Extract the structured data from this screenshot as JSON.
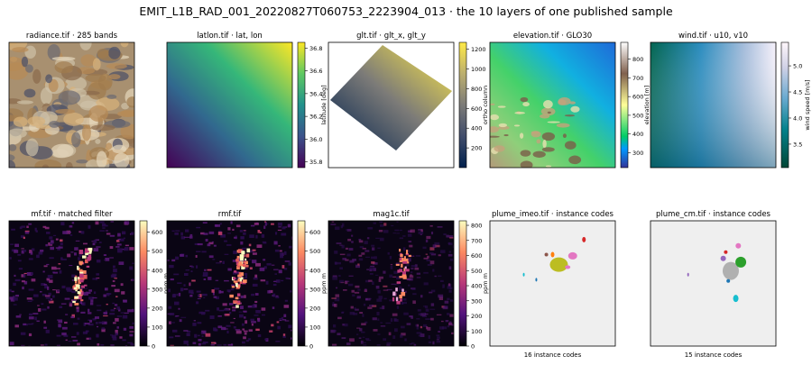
{
  "figure": {
    "suptitle": "EMIT_L1B_RAD_001_20220827T060753_2223904_013 · the 10 layers of one published sample"
  },
  "chart_data": [
    {
      "type": "heatmap",
      "title": "radiance.tif · 285 bands",
      "render": "rgb-composite",
      "colorbar": null
    },
    {
      "type": "heatmap",
      "title": "latlon.tif · lat, lon",
      "render": "gradient-latlon",
      "colorbar": {
        "label": "latitude [deg]",
        "range": [
          35.75,
          36.85
        ],
        "ticks": [
          "35.8",
          "36.0",
          "36.2",
          "36.4",
          "36.6",
          "36.8"
        ],
        "values": [
          35.8,
          36.0,
          36.2,
          36.4,
          36.6,
          36.8
        ],
        "colormap": "viridis"
      }
    },
    {
      "type": "heatmap",
      "title": "glt.tif · glt_x, glt_y",
      "render": "rotated-glt",
      "colorbar": {
        "label": "ortho column",
        "range": [
          0,
          1270
        ],
        "ticks": [
          "200",
          "400",
          "600",
          "800",
          "1000",
          "1200"
        ],
        "values": [
          200,
          400,
          600,
          800,
          1000,
          1200
        ],
        "colormap": "cividis"
      }
    },
    {
      "type": "heatmap",
      "title": "elevation.tif · GLO30",
      "render": "terrain",
      "colorbar": {
        "label": "elevation [m]",
        "range": [
          220,
          890
        ],
        "ticks": [
          "300",
          "400",
          "500",
          "600",
          "700",
          "800"
        ],
        "values": [
          300,
          400,
          500,
          600,
          700,
          800
        ],
        "colormap": "terrain"
      }
    },
    {
      "type": "heatmap",
      "title": "wind.tif · u10, v10",
      "render": "wind",
      "colorbar": {
        "label": "wind speed [m/s]",
        "range": [
          3.05,
          5.45
        ],
        "ticks": [
          "3.5",
          "4.0",
          "4.5",
          "5.0"
        ],
        "values": [
          3.5,
          4.0,
          4.5,
          5.0
        ],
        "colormap": "PuBuGn_r"
      }
    },
    {
      "type": "heatmap",
      "title": "mf.tif · matched filter",
      "render": "plume-strong",
      "colorbar": {
        "label": "ppm m",
        "range": [
          0,
          660
        ],
        "ticks": [
          "0",
          "100",
          "200",
          "300",
          "400",
          "500",
          "600"
        ],
        "values": [
          0,
          100,
          200,
          300,
          400,
          500,
          600
        ],
        "colormap": "magma"
      }
    },
    {
      "type": "heatmap",
      "title": "rmf.tif",
      "render": "plume-strong",
      "colorbar": {
        "label": "ppm m",
        "range": [
          0,
          660
        ],
        "ticks": [
          "0",
          "100",
          "200",
          "300",
          "400",
          "500",
          "600"
        ],
        "values": [
          0,
          100,
          200,
          300,
          400,
          500,
          600
        ],
        "colormap": "magma"
      }
    },
    {
      "type": "heatmap",
      "title": "mag1c.tif",
      "render": "plume-weak",
      "colorbar": {
        "label": "ppm m",
        "range": [
          0,
          830
        ],
        "ticks": [
          "0",
          "100",
          "200",
          "300",
          "400",
          "500",
          "600",
          "700",
          "800"
        ],
        "values": [
          0,
          100,
          200,
          300,
          400,
          500,
          600,
          700,
          800
        ],
        "colormap": "magma"
      }
    },
    {
      "type": "heatmap",
      "title": "plume_imeo.tif · instance codes",
      "render": "instances-imeo",
      "xlabel": "16 instance codes",
      "colorbar": null
    },
    {
      "type": "heatmap",
      "title": "plume_cm.tif · instance codes",
      "render": "instances-cm",
      "xlabel": "15 instance codes",
      "colorbar": null
    }
  ]
}
